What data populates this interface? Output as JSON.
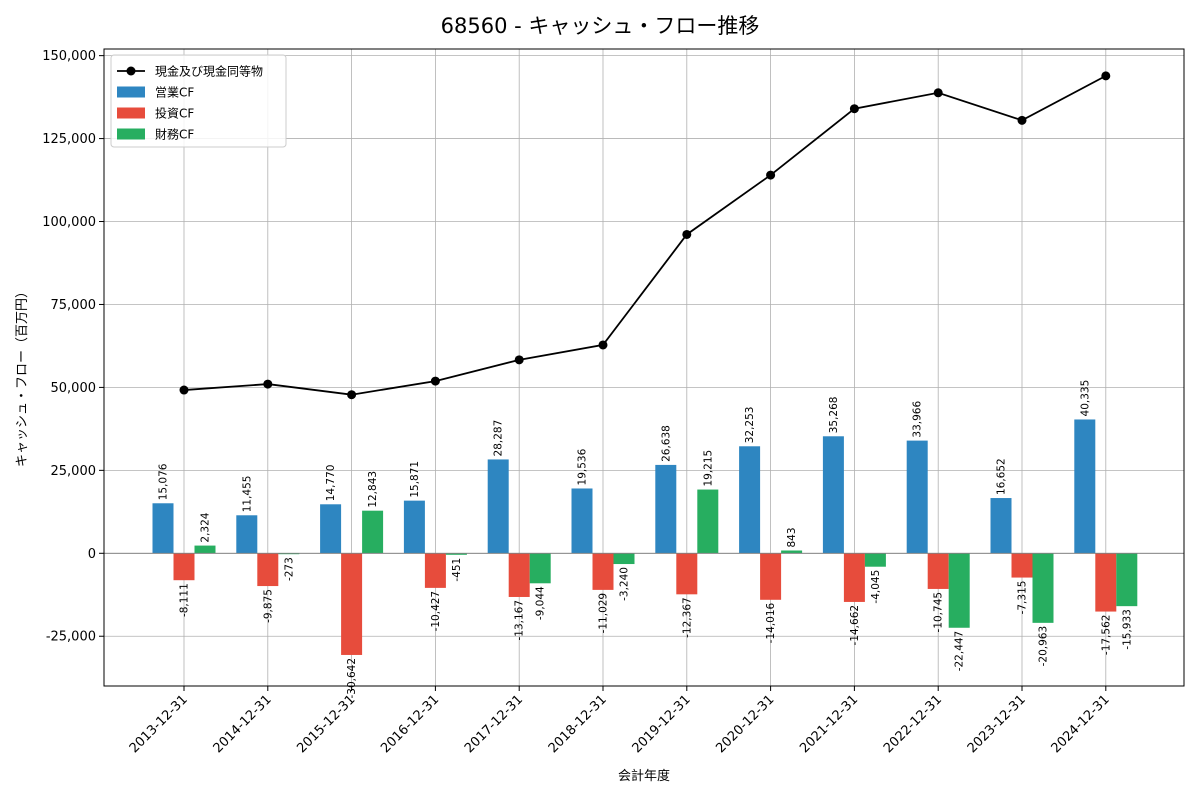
{
  "chart_data": {
    "type": "bar",
    "title": "68560 - キャッシュ・フロー推移",
    "xlabel": "会計年度",
    "ylabel": "キャッシュ・フロー（百万円）",
    "ylim": [
      -40000,
      152000
    ],
    "yticks": [
      -25000,
      0,
      25000,
      50000,
      75000,
      100000,
      125000,
      150000
    ],
    "ytick_labels": [
      "-25,000",
      "0",
      "25,000",
      "50,000",
      "75,000",
      "100,000",
      "125,000",
      "150,000"
    ],
    "grid": true,
    "legend_position": "top-left",
    "categories": [
      "2013-12-31",
      "2014-12-31",
      "2015-12-31",
      "2016-12-31",
      "2017-12-31",
      "2018-12-31",
      "2019-12-31",
      "2020-12-31",
      "2021-12-31",
      "2022-12-31",
      "2023-12-31",
      "2024-12-31"
    ],
    "series": [
      {
        "name": "営業CF",
        "kind": "bar",
        "color": "#2e86c1",
        "values": [
          15076,
          11455,
          14770,
          15871,
          28287,
          19536,
          26638,
          32253,
          35268,
          33966,
          16652,
          40335
        ],
        "labels": [
          "15,076",
          "11,455",
          "14,770",
          "15,871",
          "28,287",
          "19,536",
          "26,638",
          "32,253",
          "35,268",
          "33,966",
          "16,652",
          "40,335"
        ]
      },
      {
        "name": "投資CF",
        "kind": "bar",
        "color": "#e74c3c",
        "values": [
          -8111,
          -9875,
          -30642,
          -10427,
          -13167,
          -11029,
          -12367,
          -14016,
          -14662,
          -10745,
          -7315,
          -17562
        ],
        "labels": [
          "-8,111",
          "-9,875",
          "-30,642",
          "-10,427",
          "-13,167",
          "-11,029",
          "-12,367",
          "-14,016",
          "-14,662",
          "-10,745",
          "-7,315",
          "-17,562"
        ]
      },
      {
        "name": "財務CF",
        "kind": "bar",
        "color": "#27ae60",
        "values": [
          2324,
          -273,
          12843,
          -451,
          -9044,
          -3240,
          19215,
          843,
          -4045,
          -22447,
          -20963,
          -15933
        ],
        "labels": [
          "2,324",
          "-273",
          "12,843",
          "-451",
          "-9,044",
          "-3,240",
          "19,215",
          "843",
          "-4,045",
          "-22,447",
          "-20,963",
          "-15,933"
        ]
      },
      {
        "name": "現金及び現金同等物",
        "kind": "line",
        "color": "#000000",
        "values": [
          49200,
          51000,
          47800,
          51900,
          58300,
          62800,
          96100,
          114000,
          134000,
          138800,
          130500,
          143900
        ]
      }
    ]
  }
}
